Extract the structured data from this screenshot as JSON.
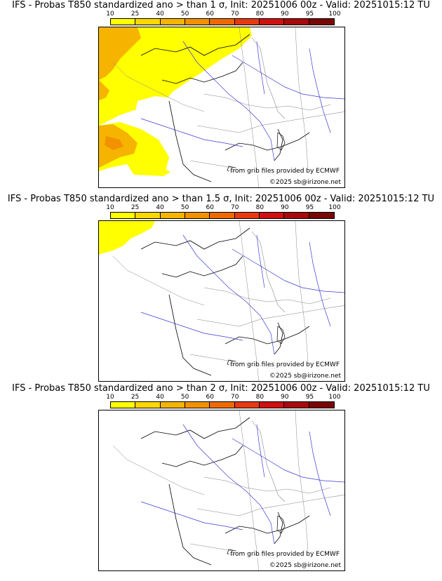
{
  "colorbar": {
    "ticks": [
      "10",
      "25",
      "40",
      "50",
      "60",
      "70",
      "80",
      "90",
      "95",
      "100"
    ],
    "colors": [
      "#ffff00",
      "#ffd700",
      "#f6b400",
      "#f39200",
      "#ee6a00",
      "#e83a10",
      "#d01010",
      "#a60a0a",
      "#7a0505"
    ]
  },
  "panels": [
    {
      "title": "IFS - Probas T850  standardized ano > than 1 σ, Init: 20251006 00z - Valid: 20251015:12 TU",
      "sigma": "1",
      "source_note": "from grib files provided by ECMWF",
      "copyright": "©2025 sb@irizone.net"
    },
    {
      "title": "IFS - Probas T850  standardized ano > than 1.5 σ, Init: 20251006 00z - Valid: 20251015:12 TU",
      "sigma": "1.5",
      "source_note": "from grib files provided by ECMWF",
      "copyright": "©2025 sb@irizone.net"
    },
    {
      "title": "IFS - Probas T850  standardized ano > than 2 σ, Init: 20251006 00z - Valid: 20251015:12 TU",
      "sigma": "2",
      "source_note": "from grib files provided by ECMWF",
      "copyright": "©2025 sb@irizone.net"
    }
  ]
}
